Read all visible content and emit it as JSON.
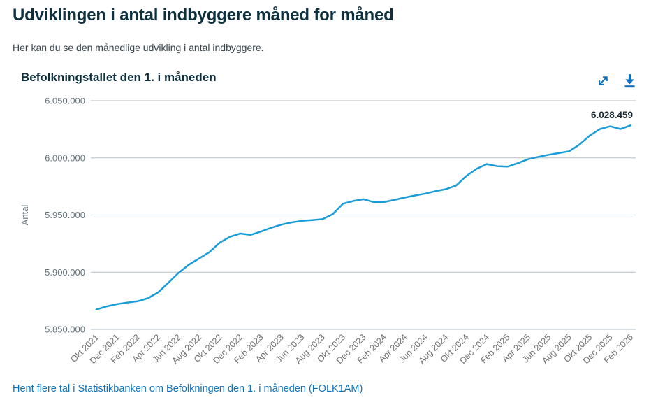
{
  "page": {
    "title": "Udviklingen i antal indbyggere måned for måned",
    "subtitle": "Her kan du se den månedlige udvikling i antal indbyggere."
  },
  "chart": {
    "title": "Befolkningstallet den 1. i måneden",
    "toolbar_icons": [
      {
        "name": "expand-icon"
      },
      {
        "name": "download-icon"
      }
    ]
  },
  "chart_data": {
    "type": "line",
    "title": "Befolkningstallet den 1. i måneden",
    "xlabel": "",
    "ylabel": "Antal",
    "series_name": "Befolkningstallet den 1. i måneden",
    "x": [
      "Okt 2021",
      "Nov 2021",
      "Dec 2021",
      "Jan 2022",
      "Feb 2022",
      "Mar 2022",
      "Apr 2022",
      "Maj 2022",
      "Jun 2022",
      "Jul 2022",
      "Aug 2022",
      "Sep 2022",
      "Okt 2022",
      "Nov 2022",
      "Dec 2022",
      "Jan 2023",
      "Feb 2023",
      "Mar 2023",
      "Apr 2023",
      "Maj 2023",
      "Jun 2023",
      "Jul 2023",
      "Aug 2023",
      "Sep 2023",
      "Okt 2023",
      "Nov 2023",
      "Dec 2023",
      "Jan 2024",
      "Feb 2024",
      "Mar 2024",
      "Apr 2024",
      "Maj 2024",
      "Jun 2024",
      "Jul 2024",
      "Aug 2024",
      "Sep 2024",
      "Okt 2024",
      "Nov 2024",
      "Dec 2024",
      "Jan 2025",
      "Feb 2025",
      "Mar 2025",
      "Apr 2025",
      "Maj 2025",
      "Jun 2025",
      "Jul 2025",
      "Aug 2025",
      "Sep 2025",
      "Okt 2025",
      "Nov 2025",
      "Dec 2025",
      "Jan 2026",
      "Feb 2026"
    ],
    "values": [
      5867412,
      5870100,
      5872100,
      5873420,
      5874600,
      5877200,
      5882300,
      5890800,
      5899500,
      5906600,
      5912000,
      5917500,
      5925800,
      5931000,
      5933800,
      5932654,
      5935500,
      5938800,
      5941600,
      5943600,
      5944900,
      5945600,
      5946400,
      5950800,
      5959900,
      5962300,
      5963800,
      5961249,
      5961400,
      5963200,
      5965300,
      5967100,
      5968800,
      5970900,
      5972600,
      5975800,
      5984200,
      5990400,
      5994600,
      5992734,
      5992300,
      5995400,
      5998800,
      6000900,
      6002700,
      6004200,
      6005700,
      6011600,
      6019500,
      6025200,
      6027600,
      6025200,
      6028459
    ],
    "ylim": [
      5850000,
      6050000
    ],
    "yticks": [
      5850000,
      5900000,
      5950000,
      6000000,
      6050000
    ],
    "ytick_labels": [
      "5.850.000",
      "5.900.000",
      "5.950.000",
      "6.000.000",
      "6.050.000"
    ],
    "xtick_every": 2,
    "xtick_rotation": -45,
    "grid": true,
    "legend": "none",
    "line_color": "#1a9cd8",
    "grid_color": "#b4c0c6",
    "axis_label_color": "#64747c",
    "xtick_color": "#6f6f6f",
    "last_value_label": "6.028.459"
  },
  "footer": {
    "link_text": "Hent flere tal i Statistikbanken om Befolkningen den 1. i måneden (FOLK1AM)"
  },
  "colors": {
    "heading": "#0d2f3e",
    "body_text": "#36454d",
    "accent_blue": "#1173bd",
    "line_blue": "#1a9cd8"
  }
}
